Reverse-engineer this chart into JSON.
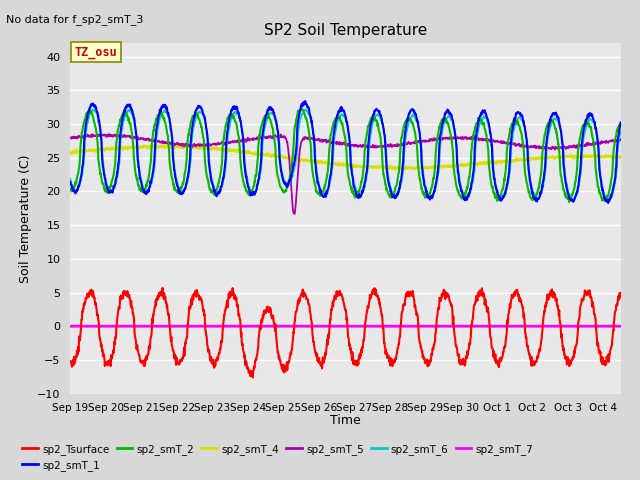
{
  "title": "SP2 Soil Temperature",
  "subtitle": "No data for f_sp2_smT_3",
  "ylabel": "Soil Temperature (C)",
  "xlabel": "Time",
  "ylim": [
    -10,
    42
  ],
  "yticks": [
    -10,
    -5,
    0,
    5,
    10,
    15,
    20,
    25,
    30,
    35,
    40
  ],
  "tz_label": "TZ_osu",
  "fig_bg_color": "#d8d8d8",
  "plot_bg_color": "#e8e8e8",
  "n_days": 15.5,
  "colors": {
    "sp2_Tsurface": "#ff0000",
    "sp2_smT_1": "#0000ff",
    "sp2_smT_2": "#00bb00",
    "sp2_smT_4": "#dddd00",
    "sp2_smT_5": "#aa00aa",
    "sp2_smT_6": "#00cccc",
    "sp2_smT_7": "#ff00ff"
  },
  "x_tick_labels": [
    "Sep 19",
    "Sep 20",
    "Sep 21",
    "Sep 22",
    "Sep 23",
    "Sep 24",
    "Sep 25",
    "Sep 26",
    "Sep 27",
    "Sep 28",
    "Sep 29",
    "Sep 30",
    "Oct 1",
    "Oct 2",
    "Oct 3",
    "Oct 4"
  ],
  "x_tick_positions": [
    0,
    1,
    2,
    3,
    4,
    5,
    6,
    7,
    8,
    9,
    10,
    11,
    12,
    13,
    14,
    15
  ]
}
